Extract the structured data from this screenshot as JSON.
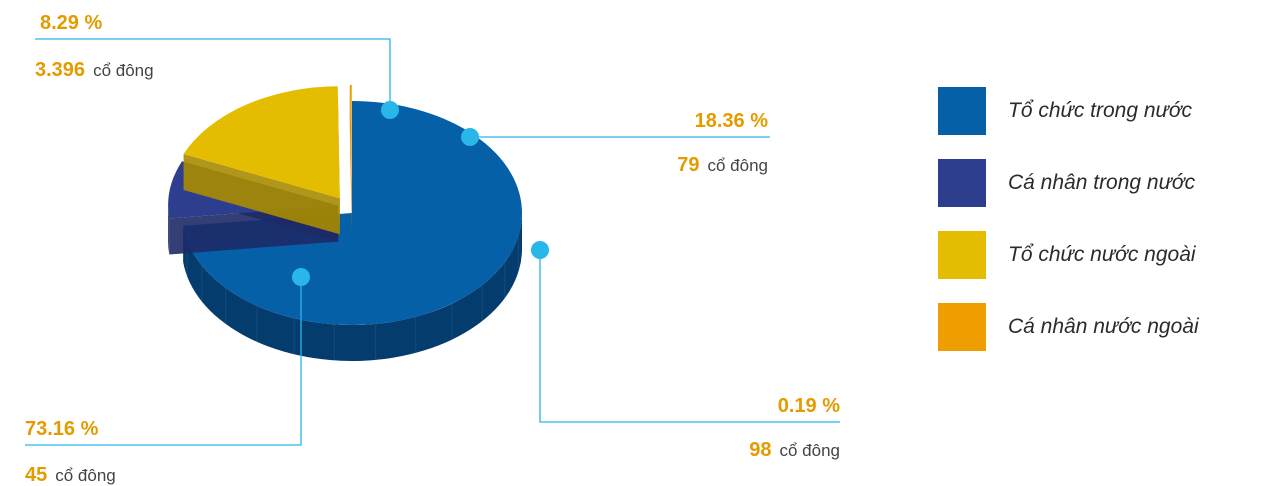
{
  "chart_data": {
    "type": "pie",
    "style": "3d-exploded",
    "slices": [
      {
        "name": "Tổ chức trong nước",
        "value": 73.16,
        "percent_label": "73.16 %",
        "count": "45",
        "unit": "cổ đông",
        "color": "#0560a8",
        "side_color": "#043c6e"
      },
      {
        "name": "Cá nhân trong nước",
        "value": 8.29,
        "percent_label": "8.29 %",
        "count": "3.396",
        "unit": "cổ đông",
        "color": "#2d3e8f",
        "side_color": "#1d2a66"
      },
      {
        "name": "Tổ chức nước ngoài",
        "value": 18.36,
        "percent_label": "18.36 %",
        "count": "79",
        "unit": "cổ đông",
        "color": "#e5bd00",
        "side_color": "#a98c00"
      },
      {
        "name": "Cá nhân nước ngoài",
        "value": 0.19,
        "percent_label": "0.19 %",
        "count": "98",
        "unit": "cổ đông",
        "color": "#ef9e00",
        "side_color": "#b57200"
      }
    ],
    "legend": {
      "placement": "right",
      "items": [
        {
          "label": "Tổ chức trong nước",
          "color": "#0560a8"
        },
        {
          "label": "Cá nhân trong nước",
          "color": "#2d3e8f"
        },
        {
          "label": "Tổ chức nước ngoài",
          "color": "#e5bd00"
        },
        {
          "label": "Cá nhân nước ngoài",
          "color": "#ef9e00"
        }
      ]
    },
    "label_color": "#e59b00",
    "leader_color": "#29b6e8"
  }
}
